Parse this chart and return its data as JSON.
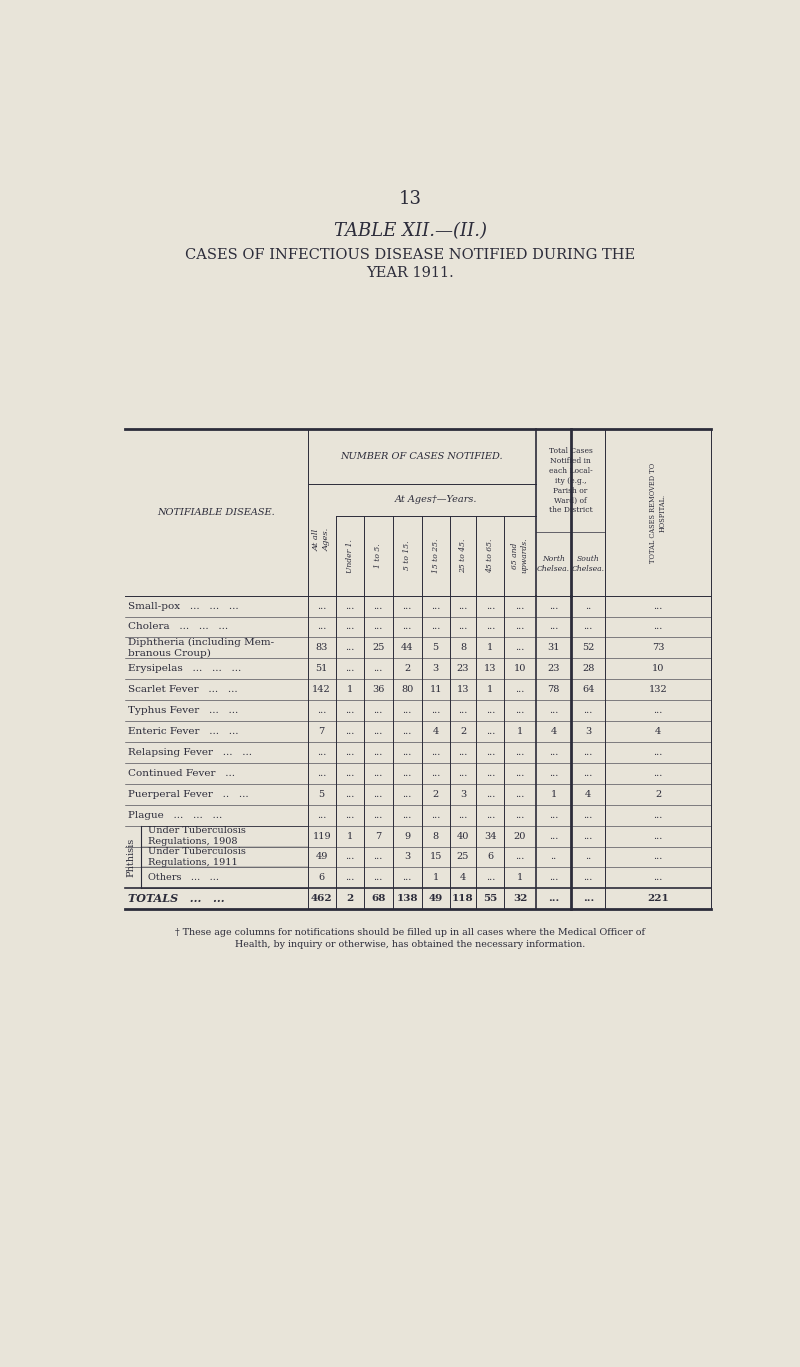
{
  "page_number": "13",
  "title1": "TABLE XII.—(II.)",
  "title2": "CASES OF INFECTIOUS DISEASE NOTIFIED DURING THE",
  "title3": "YEAR 1911.",
  "bg_color": "#e8e4d9",
  "text_color": "#2c2c3a",
  "age_labels": [
    "Under 1.",
    "1 to 5.",
    "5 to 15.",
    "15 to 25.",
    "25 to 45.",
    "45 to 65.",
    "65 and\nupwards."
  ],
  "rows_data": [
    [
      "Small-pox   ...   ...   ...",
      "...",
      "...",
      "...",
      "...",
      "...",
      "...",
      "...",
      "...",
      "...",
      "..",
      "..."
    ],
    [
      "Cholera   ...   ...   ...",
      "...",
      "...",
      "...",
      "...",
      "...",
      "...",
      "...",
      "...",
      "...",
      "...",
      "..."
    ],
    [
      "Diphtheria (including Mem-\nbranous Croup)",
      "83",
      "...",
      "25",
      "44",
      "5",
      "8",
      "1",
      "...",
      "31",
      "52",
      "73"
    ],
    [
      "Erysipelas   ...   ...   ...",
      "51",
      "...",
      "...",
      "2",
      "3",
      "23",
      "13",
      "10",
      "23",
      "28",
      "10"
    ],
    [
      "Scarlet Fever   ...   ...",
      "142",
      "1",
      "36",
      "80",
      "11",
      "13",
      "1",
      "...",
      "78",
      "64",
      "132"
    ],
    [
      "Typhus Fever   ...   ...",
      "...",
      "...",
      "...",
      "...",
      "...",
      "...",
      "...",
      "...",
      "...",
      "...",
      "..."
    ],
    [
      "Enteric Fever   ...   ...",
      "7",
      "...",
      "...",
      "...",
      "4",
      "2",
      "...",
      "1",
      "4",
      "3",
      "4"
    ],
    [
      "Relapsing Fever   ...   ...",
      "...",
      "...",
      "...",
      "...",
      "...",
      "...",
      "...",
      "...",
      "...",
      "...",
      "..."
    ],
    [
      "Continued Fever   ...",
      "...",
      "...",
      "...",
      "...",
      "...",
      "...",
      "...",
      "...",
      "...",
      "...",
      "..."
    ],
    [
      "Puerperal Fever   ..   ...",
      "5",
      "...",
      "...",
      "...",
      "2",
      "3",
      "...",
      "...",
      "1",
      "4",
      "2"
    ],
    [
      "Plague   ...   ...   ...",
      "...",
      "...",
      "...",
      "...",
      "...",
      "...",
      "...",
      "...",
      "...",
      "...",
      "..."
    ]
  ],
  "phthisis_rows": [
    [
      "Under Tuberculosis\nRegulations, 1908",
      "119",
      "1",
      "7",
      "9",
      "8",
      "40",
      "34",
      "20",
      "...",
      "...",
      "..."
    ],
    [
      "Under Tuberculosis\nRegulations, 1911",
      "49",
      "...",
      "...",
      "3",
      "15",
      "25",
      "6",
      "...",
      "..",
      "..",
      "..."
    ],
    [
      "Others   ...   ...",
      "6",
      "...",
      "...",
      "...",
      "1",
      "4",
      "...",
      "1",
      "...",
      "...",
      "..."
    ]
  ],
  "totals_row": [
    "TOTALS   ...   ...",
    "462",
    "2",
    "68",
    "138",
    "49",
    "118",
    "55",
    "32",
    "...",
    "...",
    "221"
  ],
  "footnote": "† These age columns for notifications should be filled up in all cases where the Medical Officer of\nHealth, by inquiry or otherwise, has obtained the necessary information."
}
